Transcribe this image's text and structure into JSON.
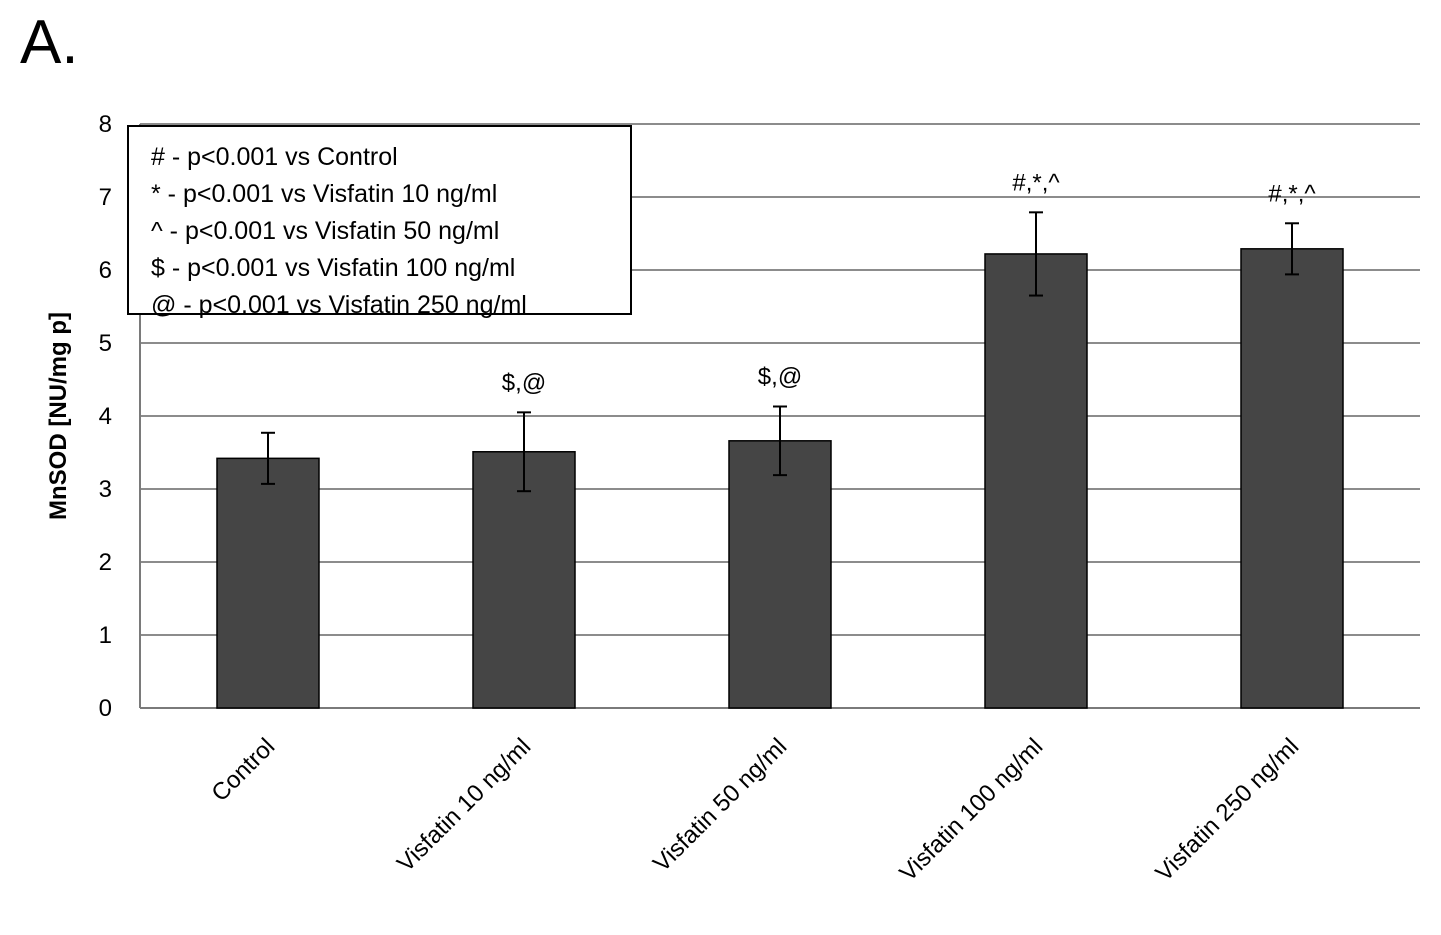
{
  "panel_label": "A.",
  "chart_data": {
    "type": "bar",
    "ylabel": "MnSOD [NU/mg p]",
    "xlabel": "",
    "ylim": [
      0,
      8
    ],
    "yticks": [
      "0",
      "1",
      "2",
      "3",
      "4",
      "5",
      "6",
      "7",
      "8"
    ],
    "grid": true,
    "categories": [
      "Control",
      "Visfatin 10 ng/ml",
      "Visfatin 50 ng/ml",
      "Visfatin 100 ng/ml",
      "Visfatin 250 ng/ml"
    ],
    "values": [
      3.42,
      3.51,
      3.66,
      6.22,
      6.29
    ],
    "errors": [
      0.35,
      0.54,
      0.47,
      0.57,
      0.35
    ],
    "annotations": [
      "",
      "$,@",
      "$,@",
      "#,*,^",
      "#,*,^"
    ],
    "bar_color": "#454545",
    "legend": [
      "# - p<0.001 vs Control",
      "* - p<0.001 vs Visfatin 10 ng/ml",
      "^ - p<0.001 vs Visfatin 50 ng/ml",
      "$ - p<0.001 vs Visfatin 100 ng/ml",
      "@ - p<0.001 vs Visfatin 250 ng/ml"
    ],
    "legend_position": "top-left"
  }
}
